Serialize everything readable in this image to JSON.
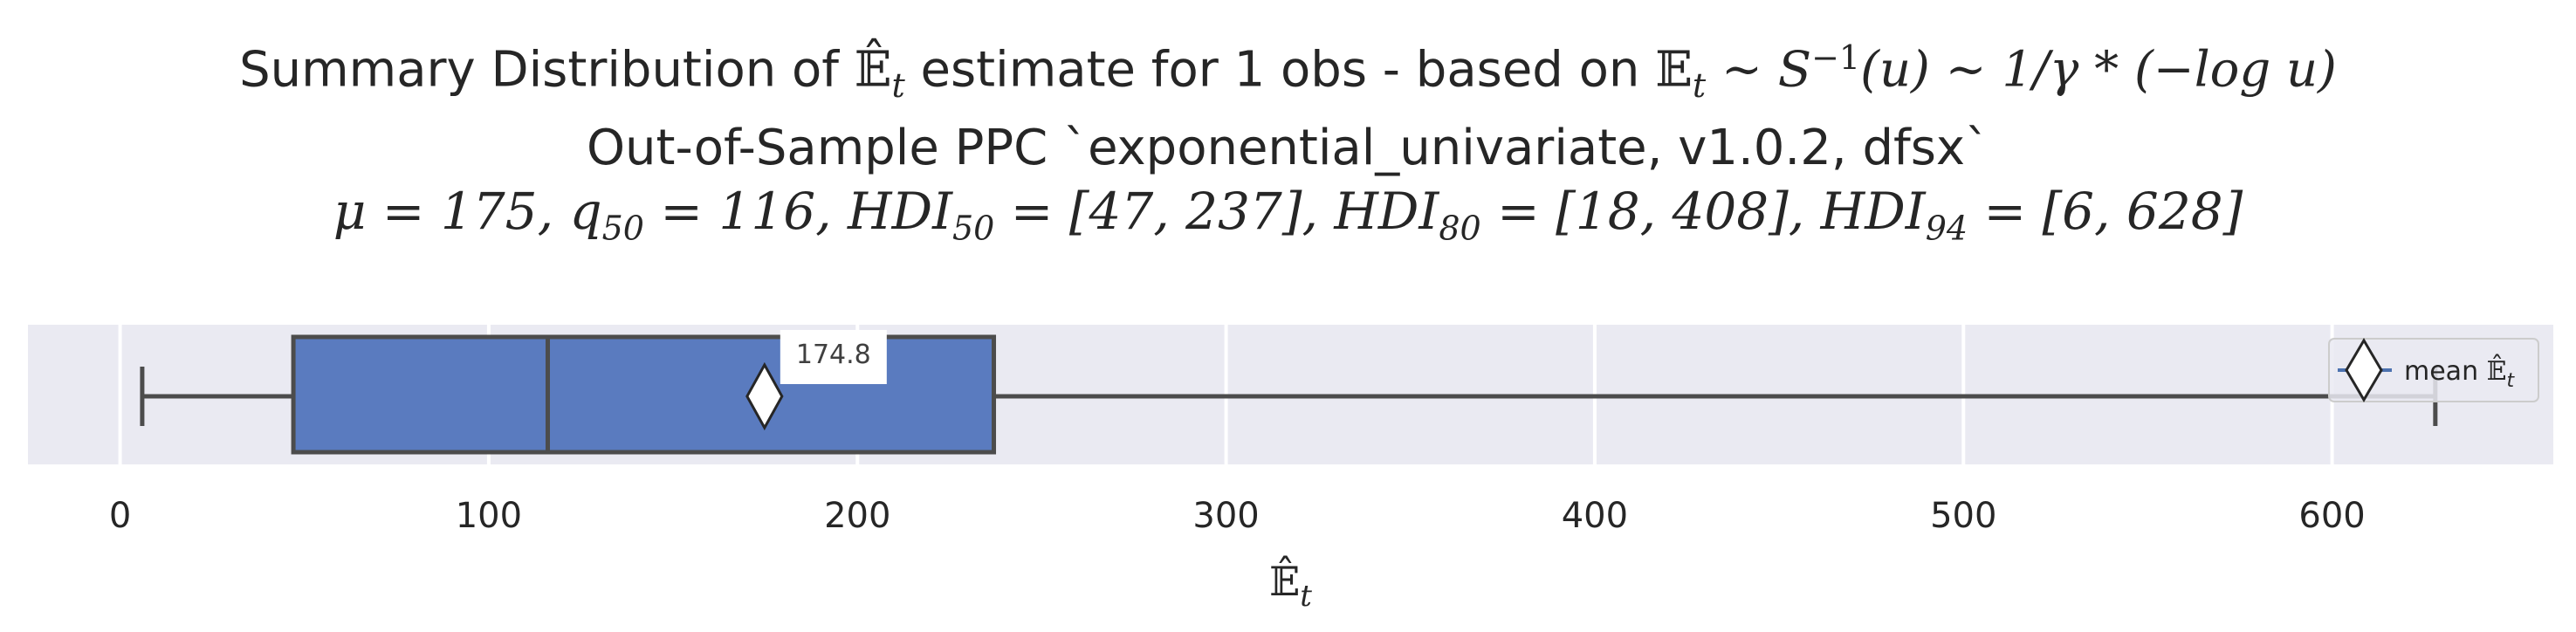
{
  "chart_data": {
    "type": "box",
    "title": {
      "line1": "Summary Distribution of Ẽ̂_t estimate for 1 obs - based on 𝔼_t ~ S⁻¹(u) ~ 1/γ * (−log u)",
      "line1_parts": [
        "Summary Distribution of ",
        "𝔼̂",
        "t",
        " estimate for 1 obs - based on ",
        "𝔼",
        "t",
        " ~ S",
        "−1",
        "(u) ~ 1/γ * (−log u)"
      ],
      "line2": "Out-of-Sample PPC `exponential_univariate, v1.0.2, dfsx`",
      "line3": "μ = 175, q50 = 116, HDI50 = [47, 237], HDI80 = [18, 408], HDI94 = [6, 628]",
      "line3_parts": [
        "μ = 175, q",
        "50",
        " = 116, HDI",
        "50",
        " = [47, 237], HDI",
        "80",
        " = [18, 408], HDI",
        "94",
        " = [6, 628]"
      ]
    },
    "xlabel": "𝔼̂",
    "xlabel_sub": "t",
    "xlim": [
      -25,
      660
    ],
    "xticks": [
      0,
      100,
      200,
      300,
      400,
      500,
      600
    ],
    "grid": true,
    "box": {
      "whisker_low": 6,
      "q1": 47,
      "median": 116,
      "q3": 237,
      "whisker_high": 628,
      "mean": 174.8
    },
    "mean_annotation": "174.8",
    "legend": {
      "placement": "right",
      "entries": [
        {
          "label": "mean ",
          "label_math": "𝔼̂",
          "label_sub": "t"
        }
      ]
    },
    "colors": {
      "box_fill": "#5a7bbf",
      "box_edge": "#4c4c4c",
      "plot_bg": "#eaeaf2",
      "grid": "#ffffff",
      "legend_line": "#4c72b0"
    }
  }
}
